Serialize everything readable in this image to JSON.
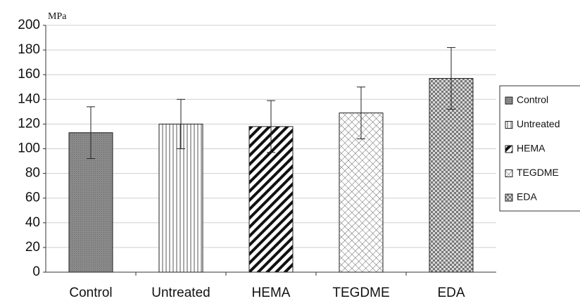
{
  "chart_data": {
    "type": "bar",
    "y_label": "MPa",
    "categories": [
      "Control",
      "Untreated",
      "HEMA",
      "TEGDME",
      "EDA"
    ],
    "values": [
      113,
      120,
      118,
      129,
      157
    ],
    "errors": [
      21,
      20,
      21,
      21,
      25
    ],
    "patterns": [
      "dots",
      "vertical",
      "diagonal",
      "crosshatch",
      "checker"
    ],
    "ylim": [
      0,
      200
    ],
    "yticks": [
      0,
      20,
      40,
      60,
      80,
      100,
      120,
      140,
      160,
      180,
      200
    ],
    "grid": true,
    "legend": "right"
  }
}
